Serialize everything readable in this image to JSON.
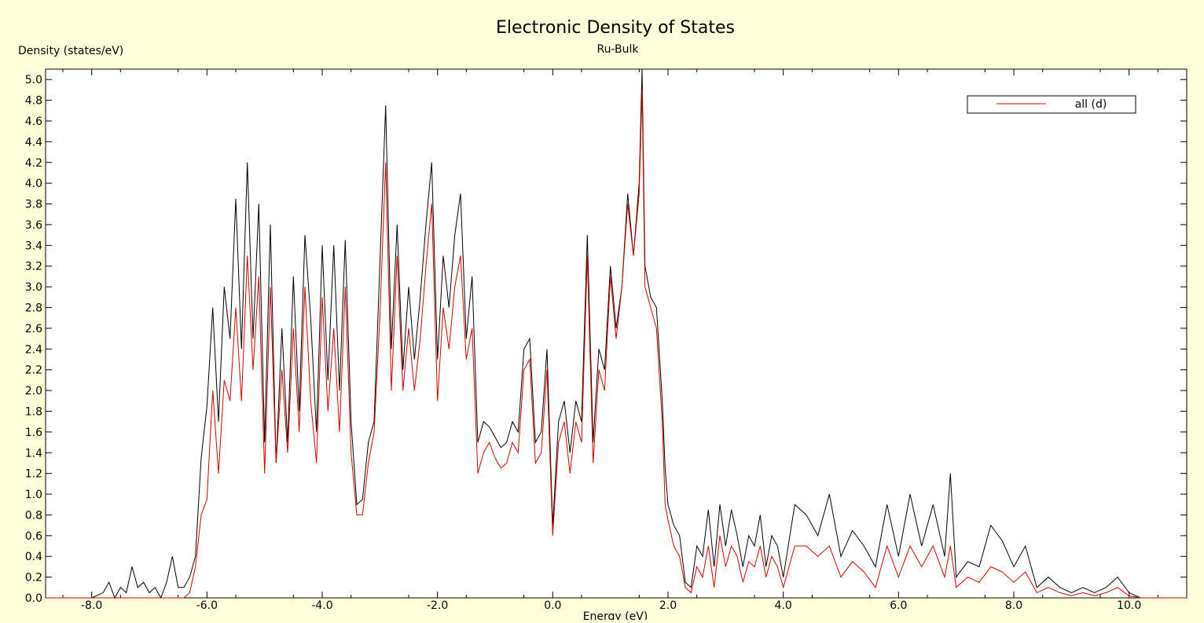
{
  "chart_data": {
    "type": "line",
    "title": "Electronic Density of States",
    "subtitle": "Ru-Bulk",
    "xlabel": "Energy (eV)",
    "ylabel": "Density (states/eV)",
    "xlim": [
      -8.8,
      11.0
    ],
    "ylim": [
      0.0,
      5.1
    ],
    "x_ticks": [
      "-8.0",
      "-6.0",
      "-4.0",
      "-2.0",
      "0.0",
      "2.0",
      "4.0",
      "6.0",
      "8.0",
      "10.0"
    ],
    "y_ticks": [
      "0.0",
      "0.2",
      "0.4",
      "0.6",
      "0.8",
      "1.0",
      "1.2",
      "1.4",
      "1.6",
      "1.8",
      "2.0",
      "2.2",
      "2.4",
      "2.6",
      "2.8",
      "3.0",
      "3.2",
      "3.4",
      "3.6",
      "3.8",
      "4.0",
      "4.2",
      "4.4",
      "4.6",
      "4.8",
      "5.0"
    ],
    "grid": false,
    "legend_position": "top-right",
    "background_color": "#ffffd9",
    "plot_background_color": "#ffffff",
    "series": [
      {
        "color": "#000000",
        "x": [
          -8.8,
          -8.0,
          -7.8,
          -7.7,
          -7.6,
          -7.5,
          -7.4,
          -7.3,
          -7.2,
          -7.1,
          -7.0,
          -6.9,
          -6.8,
          -6.7,
          -6.6,
          -6.5,
          -6.4,
          -6.3,
          -6.2,
          -6.1,
          -6.0,
          -5.9,
          -5.8,
          -5.7,
          -5.6,
          -5.5,
          -5.4,
          -5.3,
          -5.2,
          -5.1,
          -5.0,
          -4.9,
          -4.8,
          -4.7,
          -4.6,
          -4.5,
          -4.4,
          -4.3,
          -4.2,
          -4.1,
          -4.0,
          -3.9,
          -3.8,
          -3.7,
          -3.6,
          -3.5,
          -3.4,
          -3.3,
          -3.2,
          -3.1,
          -3.0,
          -2.9,
          -2.8,
          -2.7,
          -2.6,
          -2.5,
          -2.4,
          -2.3,
          -2.2,
          -2.1,
          -2.0,
          -1.9,
          -1.8,
          -1.7,
          -1.6,
          -1.5,
          -1.4,
          -1.3,
          -1.2,
          -1.1,
          -1.0,
          -0.9,
          -0.8,
          -0.7,
          -0.6,
          -0.5,
          -0.4,
          -0.3,
          -0.2,
          -0.1,
          0.0,
          0.1,
          0.2,
          0.3,
          0.4,
          0.5,
          0.6,
          0.7,
          0.8,
          0.9,
          1.0,
          1.1,
          1.2,
          1.3,
          1.4,
          1.5,
          1.55,
          1.6,
          1.7,
          1.8,
          1.9,
          1.95,
          2.0,
          2.1,
          2.2,
          2.3,
          2.4,
          2.5,
          2.6,
          2.7,
          2.8,
          2.9,
          3.0,
          3.1,
          3.2,
          3.3,
          3.4,
          3.5,
          3.6,
          3.7,
          3.8,
          3.9,
          4.0,
          4.2,
          4.4,
          4.6,
          4.8,
          5.0,
          5.2,
          5.4,
          5.6,
          5.8,
          6.0,
          6.2,
          6.4,
          6.6,
          6.8,
          6.9,
          7.0,
          7.2,
          7.4,
          7.6,
          7.8,
          8.0,
          8.2,
          8.4,
          8.6,
          8.8,
          9.0,
          9.2,
          9.4,
          9.6,
          9.8,
          10.0,
          10.2,
          11.0
        ],
        "y": [
          0.0,
          0.0,
          0.05,
          0.15,
          0.0,
          0.1,
          0.05,
          0.3,
          0.1,
          0.15,
          0.05,
          0.1,
          0.0,
          0.15,
          0.4,
          0.1,
          0.1,
          0.2,
          0.4,
          1.35,
          1.85,
          2.8,
          1.7,
          3.0,
          2.5,
          3.85,
          2.4,
          4.2,
          2.5,
          3.8,
          1.5,
          3.6,
          1.3,
          2.6,
          1.5,
          3.1,
          1.8,
          3.5,
          2.7,
          1.6,
          3.4,
          2.1,
          3.4,
          2.0,
          3.45,
          1.7,
          0.9,
          0.95,
          1.5,
          1.7,
          3.2,
          4.75,
          2.4,
          3.6,
          2.2,
          3.0,
          2.3,
          2.9,
          3.6,
          4.2,
          2.3,
          3.3,
          2.8,
          3.5,
          3.9,
          2.5,
          3.1,
          1.5,
          1.7,
          1.65,
          1.55,
          1.45,
          1.5,
          1.7,
          1.6,
          2.4,
          2.5,
          1.5,
          1.6,
          2.4,
          0.7,
          1.7,
          1.9,
          1.4,
          1.9,
          1.7,
          3.5,
          1.5,
          2.4,
          2.2,
          3.2,
          2.6,
          3.0,
          3.9,
          3.3,
          4.0,
          5.1,
          3.2,
          2.9,
          2.8,
          1.9,
          1.25,
          0.9,
          0.7,
          0.6,
          0.15,
          0.1,
          0.5,
          0.4,
          0.85,
          0.3,
          0.9,
          0.5,
          0.85,
          0.6,
          0.3,
          0.6,
          0.5,
          0.8,
          0.3,
          0.6,
          0.5,
          0.2,
          0.9,
          0.8,
          0.6,
          1.0,
          0.4,
          0.65,
          0.5,
          0.3,
          0.9,
          0.4,
          1.0,
          0.5,
          0.9,
          0.4,
          1.2,
          0.2,
          0.35,
          0.3,
          0.7,
          0.55,
          0.3,
          0.5,
          0.1,
          0.2,
          0.1,
          0.05,
          0.1,
          0.05,
          0.1,
          0.2,
          0.05,
          0.0,
          0.0
        ]
      },
      {
        "name": "all (d)",
        "color": "#d40000",
        "x": [
          -8.8,
          -6.4,
          -6.3,
          -6.2,
          -6.1,
          -6.0,
          -5.9,
          -5.8,
          -5.7,
          -5.6,
          -5.5,
          -5.4,
          -5.3,
          -5.2,
          -5.1,
          -5.0,
          -4.9,
          -4.8,
          -4.7,
          -4.6,
          -4.5,
          -4.4,
          -4.3,
          -4.2,
          -4.1,
          -4.0,
          -3.9,
          -3.8,
          -3.7,
          -3.6,
          -3.5,
          -3.4,
          -3.3,
          -3.2,
          -3.1,
          -3.0,
          -2.9,
          -2.8,
          -2.7,
          -2.6,
          -2.5,
          -2.4,
          -2.3,
          -2.2,
          -2.1,
          -2.0,
          -1.9,
          -1.8,
          -1.7,
          -1.6,
          -1.5,
          -1.4,
          -1.3,
          -1.2,
          -1.1,
          -1.0,
          -0.9,
          -0.8,
          -0.7,
          -0.6,
          -0.5,
          -0.4,
          -0.3,
          -0.2,
          -0.1,
          0.0,
          0.1,
          0.2,
          0.3,
          0.4,
          0.5,
          0.6,
          0.7,
          0.8,
          0.9,
          1.0,
          1.1,
          1.2,
          1.3,
          1.4,
          1.5,
          1.55,
          1.6,
          1.7,
          1.8,
          1.9,
          1.95,
          2.0,
          2.1,
          2.2,
          2.3,
          2.4,
          2.5,
          2.6,
          2.7,
          2.8,
          2.9,
          3.0,
          3.1,
          3.2,
          3.3,
          3.4,
          3.5,
          3.6,
          3.7,
          3.8,
          3.9,
          4.0,
          4.2,
          4.4,
          4.6,
          4.8,
          5.0,
          5.2,
          5.4,
          5.6,
          5.8,
          6.0,
          6.2,
          6.4,
          6.6,
          6.8,
          6.9,
          7.0,
          7.2,
          7.4,
          7.6,
          7.8,
          8.0,
          8.2,
          8.4,
          8.6,
          8.8,
          9.0,
          9.2,
          9.4,
          9.6,
          9.8,
          10.0,
          10.2,
          11.0
        ],
        "y": [
          0.0,
          0.0,
          0.05,
          0.3,
          0.8,
          0.95,
          2.0,
          1.2,
          2.1,
          1.9,
          2.8,
          1.9,
          3.3,
          2.2,
          3.1,
          1.2,
          3.0,
          1.3,
          2.2,
          1.4,
          2.6,
          1.6,
          3.0,
          1.9,
          1.3,
          2.9,
          1.8,
          2.6,
          1.6,
          3.0,
          1.4,
          0.8,
          0.8,
          1.3,
          1.6,
          2.7,
          4.2,
          2.0,
          3.3,
          2.0,
          2.6,
          2.0,
          2.5,
          3.2,
          3.8,
          1.9,
          2.8,
          2.4,
          3.0,
          3.3,
          2.3,
          2.6,
          1.2,
          1.4,
          1.5,
          1.35,
          1.25,
          1.3,
          1.5,
          1.4,
          2.2,
          2.3,
          1.3,
          1.4,
          2.2,
          0.6,
          1.5,
          1.7,
          1.2,
          1.7,
          1.5,
          3.3,
          1.3,
          2.2,
          2.0,
          3.1,
          2.5,
          3.0,
          3.8,
          3.3,
          3.9,
          4.9,
          3.0,
          2.8,
          2.6,
          1.7,
          0.9,
          0.75,
          0.5,
          0.4,
          0.1,
          0.05,
          0.3,
          0.2,
          0.5,
          0.1,
          0.6,
          0.3,
          0.5,
          0.4,
          0.15,
          0.35,
          0.3,
          0.5,
          0.2,
          0.4,
          0.3,
          0.1,
          0.5,
          0.5,
          0.4,
          0.5,
          0.2,
          0.35,
          0.25,
          0.1,
          0.5,
          0.2,
          0.5,
          0.3,
          0.5,
          0.2,
          0.5,
          0.1,
          0.2,
          0.15,
          0.3,
          0.25,
          0.15,
          0.25,
          0.05,
          0.1,
          0.05,
          0.02,
          0.05,
          0.02,
          0.05,
          0.1,
          0.02,
          0.0,
          0.0
        ]
      }
    ]
  }
}
